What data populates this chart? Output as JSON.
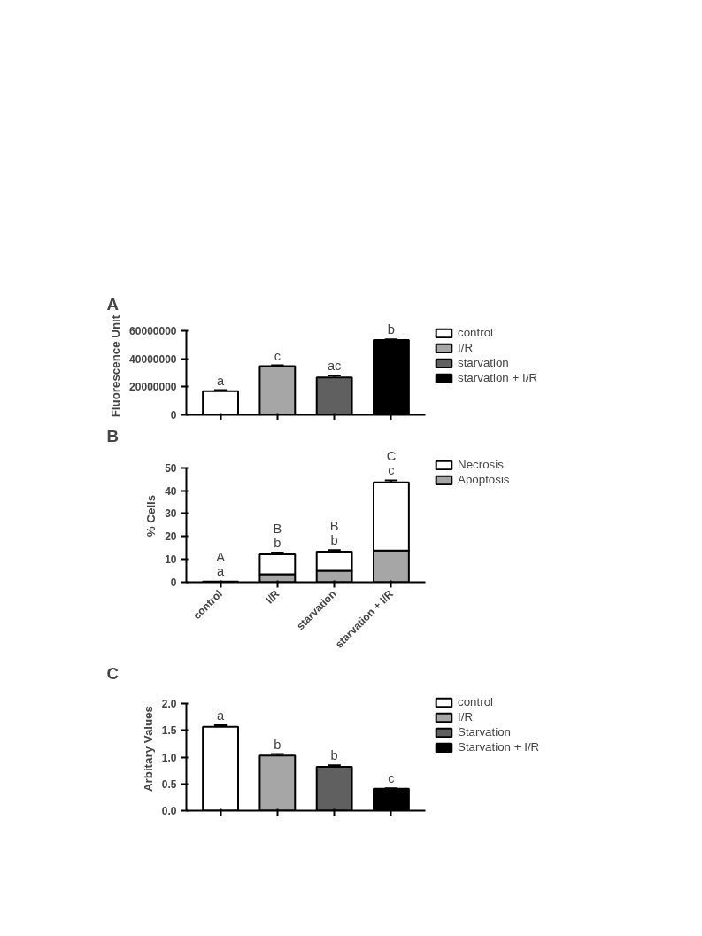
{
  "chart_data": [
    {
      "type": "bar",
      "title": "A",
      "ylabel": "Fluorescence Unit",
      "categories": [
        null,
        null,
        null,
        null
      ],
      "stacked": true,
      "legend": "right",
      "grid": false,
      "tick_labels": "y",
      "ylim": [
        0,
        60000000
      ],
      "yticks": [
        0,
        20000000,
        40000000,
        60000000
      ],
      "series": [
        {
          "name": "control",
          "color": "#ffffff",
          "values": [
            17000000,
            null,
            null,
            null
          ],
          "errors": [
            700000,
            null,
            null,
            null
          ]
        },
        {
          "name": "I/R",
          "color": "#a6a6a6",
          "values": [
            null,
            34800000,
            null,
            null
          ],
          "errors": [
            null,
            600000,
            null,
            null
          ]
        },
        {
          "name": "starvation",
          "color": "#606060",
          "values": [
            null,
            null,
            26700000,
            null
          ],
          "errors": [
            null,
            null,
            1500000,
            null
          ]
        },
        {
          "name": "starvation + I/R",
          "color": "#000000",
          "values": [
            null,
            null,
            null,
            53500000
          ],
          "errors": [
            null,
            null,
            null,
            500000
          ]
        }
      ],
      "annotations": [
        "a",
        "c",
        "ac",
        "b"
      ]
    },
    {
      "type": "bar",
      "title": "B",
      "ylabel": "% Cells",
      "categories": [
        "control",
        "I/R",
        "starvation",
        "starvation + I/R"
      ],
      "stacked": true,
      "legend": "right",
      "grid": false,
      "ylim": [
        0,
        50
      ],
      "yticks": [
        0,
        10,
        20,
        30,
        40,
        50
      ],
      "series": [
        {
          "name": "Apoptosis",
          "color": "#a6a6a6",
          "values": [
            null,
            3.5,
            5.0,
            13.8
          ],
          "errors": [
            null,
            0.6,
            0.6,
            0.7
          ]
        },
        {
          "name": "Necrosis",
          "color": "#ffffff",
          "values": [
            0.3,
            8.7,
            8.3,
            29.8
          ],
          "errors": [
            null,
            0.8,
            0.7,
            0.9
          ]
        }
      ],
      "annotations": [
        {
          "text": "a",
          "x": "control",
          "y": 0.4
        },
        {
          "text": "A",
          "x": "control",
          "y": 0.4
        },
        {
          "text": "b",
          "x": "I/R",
          "y": 13.0
        },
        {
          "text": "B",
          "x": "I/R",
          "y": 13.0
        },
        {
          "text": "b",
          "x": "starvation",
          "y": 14.0
        },
        {
          "text": "B",
          "x": "starvation",
          "y": 14.0
        },
        {
          "text": "c",
          "x": "starvation + I/R",
          "y": 44.5
        },
        {
          "text": "C",
          "x": "starvation + I/R",
          "y": 44.5
        }
      ]
    },
    {
      "type": "bar",
      "title": "C",
      "ylabel": "Arbitary Values",
      "categories": [
        null,
        null,
        null,
        null
      ],
      "stacked": true,
      "legend": "right",
      "grid": false,
      "tick_labels": "y",
      "ylim": [
        0,
        2
      ],
      "yticks": [
        {
          "value": 0,
          "label": "0.0"
        },
        0.5,
        {
          "value": 1,
          "label": "1.0"
        },
        1.5,
        {
          "value": 2,
          "label": "2.0"
        }
      ],
      "series": [
        {
          "name": "control",
          "color": "#ffffff",
          "values": [
            1.57,
            null,
            null,
            null
          ],
          "errors": [
            0.03,
            null,
            null,
            null
          ]
        },
        {
          "name": "I/R",
          "color": "#a6a6a6",
          "values": [
            null,
            1.03,
            null,
            null
          ],
          "errors": [
            null,
            0.03,
            null,
            null
          ]
        },
        {
          "name": "Starvation",
          "color": "#606060",
          "values": [
            null,
            null,
            0.82,
            null
          ],
          "errors": [
            null,
            null,
            0.03,
            null
          ]
        },
        {
          "name": "Starvation + I/R",
          "color": "#000000",
          "values": [
            null,
            null,
            null,
            0.41
          ],
          "errors": [
            null,
            null,
            null,
            0.01
          ]
        }
      ],
      "annotations": [
        "a",
        "b",
        "b",
        "c"
      ]
    }
  ]
}
